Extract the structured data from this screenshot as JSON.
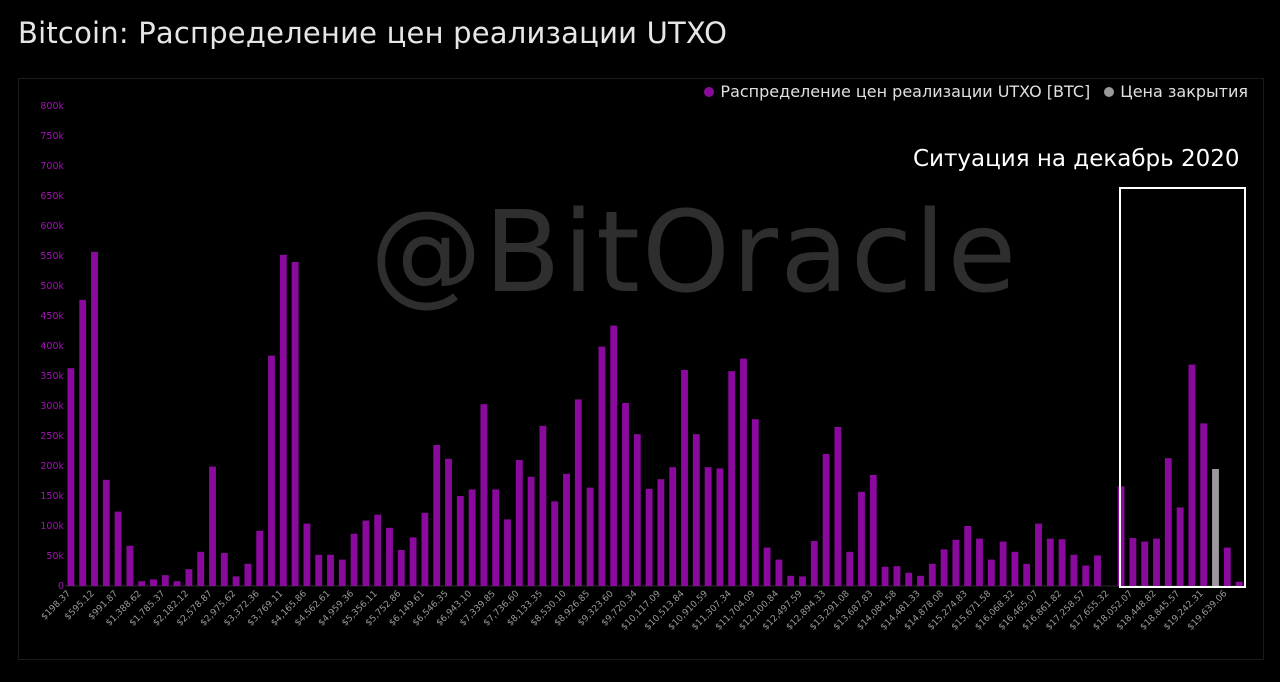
{
  "title": "Bitcoin: Распределение цен реализации UTXO",
  "watermark": "@BitOracle",
  "annotation": "Ситуация на декабрь 2020",
  "legend": [
    {
      "name": "Распределение цен реализации UTXO [BTC]",
      "color": "#8b0a9e"
    },
    {
      "name": "Цена закрытия",
      "color": "#9a9a9a"
    }
  ],
  "chart_data": {
    "type": "bar",
    "ylim": [
      0,
      800000
    ],
    "yticks": [
      0,
      50000,
      100000,
      150000,
      200000,
      250000,
      300000,
      350000,
      400000,
      450000,
      500000,
      550000,
      600000,
      650000,
      700000,
      750000,
      800000
    ],
    "ytick_labels": [
      "0",
      "50k",
      "100k",
      "150k",
      "200k",
      "250k",
      "300k",
      "350k",
      "400k",
      "450k",
      "500k",
      "550k",
      "600k",
      "650k",
      "700k",
      "750k",
      "800k"
    ],
    "xtick_labels": [
      "$198.37",
      "$595.12",
      "$991.87",
      "$1,388.62",
      "$1,785.37",
      "$2,182.12",
      "$2,578.87",
      "$2,975.62",
      "$3,372.36",
      "$3,769.11",
      "$4,165.86",
      "$4,562.61",
      "$4,959.36",
      "$5,356.11",
      "$5,752.86",
      "$6,149.61",
      "$6,546.35",
      "$6,943.10",
      "$7,339.85",
      "$7,736.60",
      "$8,133.35",
      "$8,530.10",
      "$8,926.85",
      "$9,323.60",
      "$9,720.34",
      "$10,117.09",
      "$10,513.84",
      "$10,910.59",
      "$11,307.34",
      "$11,704.09",
      "$12,100.84",
      "$12,497.59",
      "$12,894.33",
      "$13,291.08",
      "$13,687.83",
      "$14,084.58",
      "$14,481.33",
      "$14,878.08",
      "$15,274.83",
      "$15,671.58",
      "$16,068.32",
      "$16,465.07",
      "$16,861.82",
      "$17,258.57",
      "$17,655.32",
      "$18,052.07",
      "$18,448.82",
      "$18,845.57",
      "$19,242.31",
      "$19,639.06"
    ],
    "series": [
      {
        "name": "Распределение цен реализации UTXO [BTC]",
        "color": "#8b0a9e",
        "values": [
          363000,
          477000,
          557000,
          177000,
          124000,
          67000,
          8000,
          11000,
          18000,
          8000,
          28000,
          57000,
          199000,
          55000,
          16000,
          37000,
          92000,
          384000,
          552000,
          540000,
          104000,
          52000,
          52000,
          44000,
          87000,
          109000,
          119000,
          97000,
          60000,
          81000,
          122000,
          235000,
          212000,
          150000,
          161000,
          303000,
          161000,
          111000,
          210000,
          182000,
          267000,
          141000,
          187000,
          311000,
          164000,
          399000,
          434000,
          305000,
          253000,
          162000,
          178000,
          198000,
          360000,
          253000,
          198000,
          196000,
          358000,
          379000,
          278000,
          64000,
          44000,
          17000,
          16000,
          75000,
          220000,
          265000,
          57000,
          157000,
          185000,
          32000,
          33000,
          22000,
          17000,
          37000,
          61000,
          77000,
          100000,
          79000,
          44000,
          74000,
          57000,
          37000,
          104000,
          79000,
          78000,
          52000,
          34000,
          51000,
          0,
          166000,
          80000,
          74000,
          79000,
          213000,
          131000,
          369000,
          271000,
          0,
          64000,
          7000
        ]
      },
      {
        "name": "Цена закрытия",
        "color": "#9a9a9a",
        "values": [
          0,
          0,
          0,
          0,
          0,
          0,
          0,
          0,
          0,
          0,
          0,
          0,
          0,
          0,
          0,
          0,
          0,
          0,
          0,
          0,
          0,
          0,
          0,
          0,
          0,
          0,
          0,
          0,
          0,
          0,
          0,
          0,
          0,
          0,
          0,
          0,
          0,
          0,
          0,
          0,
          0,
          0,
          0,
          0,
          0,
          0,
          0,
          0,
          0,
          0,
          0,
          0,
          0,
          0,
          0,
          0,
          0,
          0,
          0,
          0,
          0,
          0,
          0,
          0,
          0,
          0,
          0,
          0,
          0,
          0,
          0,
          0,
          0,
          0,
          0,
          0,
          0,
          0,
          0,
          0,
          0,
          0,
          0,
          0,
          0,
          0,
          0,
          0,
          0,
          0,
          0,
          0,
          0,
          0,
          0,
          0,
          0,
          195000,
          0,
          0
        ]
      }
    ]
  }
}
